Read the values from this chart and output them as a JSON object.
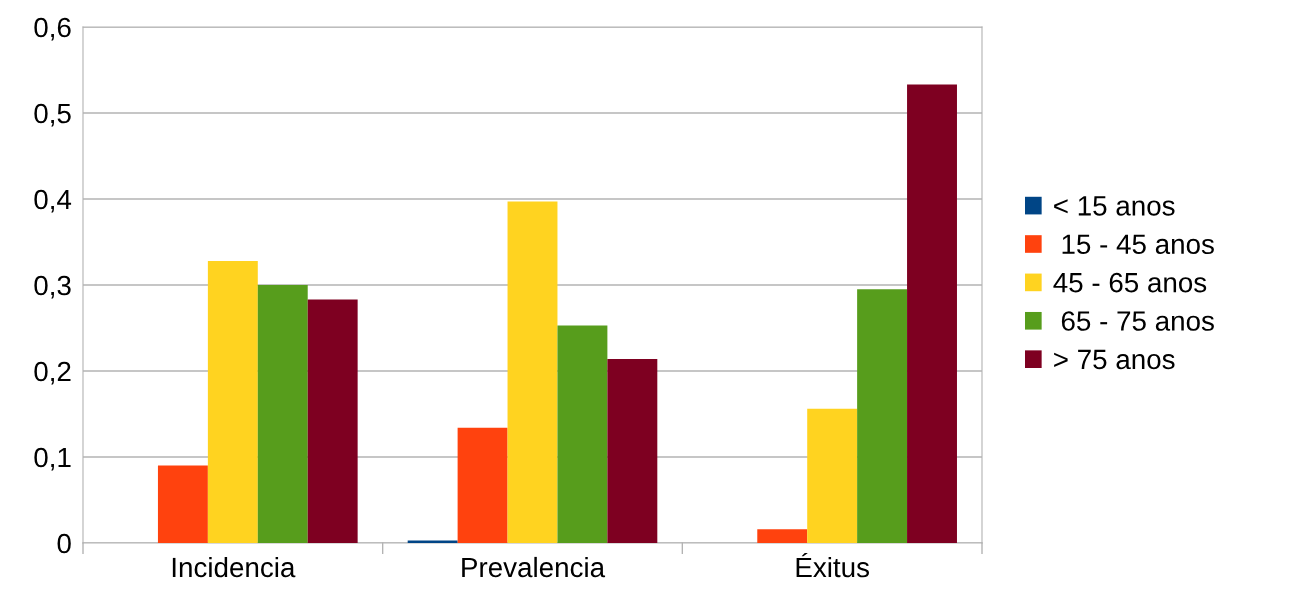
{
  "chart_data": {
    "type": "bar",
    "categories": [
      "Incidencia",
      "Prevalencia",
      "Éxitus"
    ],
    "series": [
      {
        "name": "< 15 anos",
        "color": "#004586",
        "values": [
          0,
          0.003,
          0
        ]
      },
      {
        "name": " 15 - 45 anos",
        "color": "#ff420e",
        "values": [
          0.09,
          0.134,
          0.016
        ]
      },
      {
        "name": "45 - 65 anos",
        "color": "#ffd320",
        "values": [
          0.328,
          0.397,
          0.156
        ]
      },
      {
        "name": " 65 - 75 anos",
        "color": "#579d1c",
        "values": [
          0.3,
          0.253,
          0.295
        ]
      },
      {
        "name": "> 75 anos",
        "color": "#7e0021",
        "values": [
          0.283,
          0.214,
          0.533
        ]
      }
    ],
    "ylim": [
      0,
      0.6
    ],
    "yticks": [
      {
        "value": 0,
        "label": "0"
      },
      {
        "value": 0.1,
        "label": "0,1"
      },
      {
        "value": 0.2,
        "label": "0,2"
      },
      {
        "value": 0.3,
        "label": "0,3"
      },
      {
        "value": 0.4,
        "label": "0,4"
      },
      {
        "value": 0.5,
        "label": "0,5"
      },
      {
        "value": 0.6,
        "label": "0,6"
      }
    ],
    "grid": "y",
    "legend": "right"
  }
}
